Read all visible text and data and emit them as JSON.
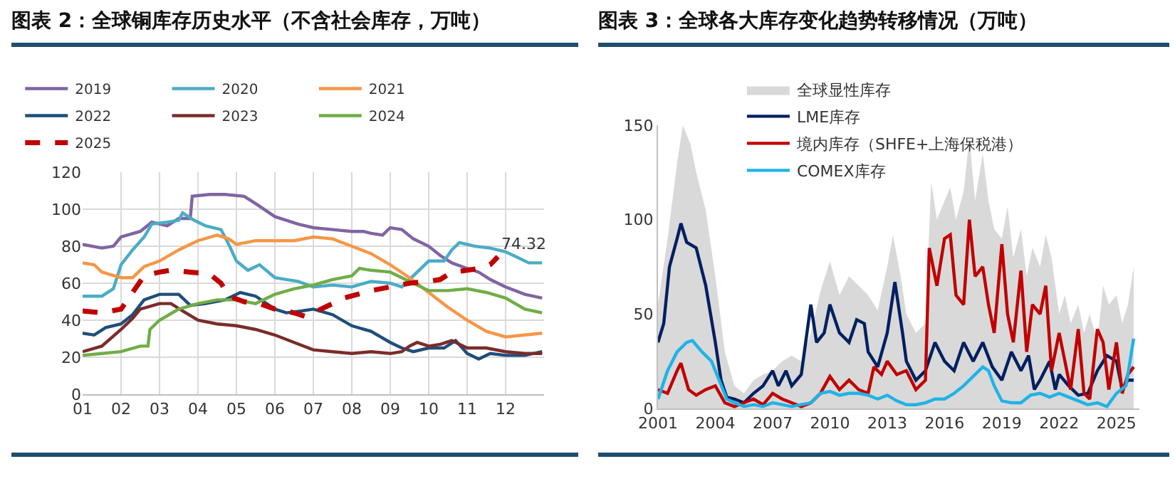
{
  "chart_data": [
    {
      "type": "line",
      "title": "图表 2：全球铜库存历史水平（不含社会库存，万吨）",
      "grid": true,
      "legend": "top",
      "xlim": [
        1,
        13
      ],
      "xticks": [
        {
          "value": 1,
          "label": "01"
        },
        {
          "value": 2,
          "label": "02"
        },
        {
          "value": 3,
          "label": "03"
        },
        {
          "value": 4,
          "label": "04"
        },
        {
          "value": 5,
          "label": "05"
        },
        {
          "value": 6,
          "label": "06"
        },
        {
          "value": 7,
          "label": "07"
        },
        {
          "value": 8,
          "label": "08"
        },
        {
          "value": 9,
          "label": "09"
        },
        {
          "value": 10,
          "label": "10"
        },
        {
          "value": 11,
          "label": "11"
        },
        {
          "value": 12,
          "label": "12"
        }
      ],
      "ylim": [
        0,
        120
      ],
      "yticks": [
        0,
        20,
        40,
        60,
        80,
        100,
        120
      ],
      "annotations": [
        {
          "text": "74.32",
          "x": 11.8,
          "y": 74.32
        }
      ],
      "series": [
        {
          "name": "2019",
          "color": "#8064a2",
          "x": [
            1,
            1.5,
            1.8,
            2,
            2.5,
            2.8,
            3.2,
            3.5,
            3.8,
            3.85,
            4.3,
            4.7,
            5.2,
            5.5,
            6,
            6.3,
            6.6,
            7,
            7.5,
            8,
            8.3,
            8.5,
            8.8,
            9,
            9.3,
            9.6,
            10,
            10.3,
            10.6,
            11,
            11.3,
            11.6,
            12,
            12.5,
            12.95
          ],
          "values": [
            81,
            79,
            80,
            85,
            88,
            93,
            91,
            95,
            95,
            107,
            108,
            108,
            107,
            103,
            96,
            94,
            92,
            90,
            89,
            88,
            88,
            87,
            86,
            90,
            89,
            84,
            80,
            75,
            71,
            68,
            66,
            62,
            58,
            54,
            52
          ]
        },
        {
          "name": "2020",
          "color": "#4bacc6",
          "x": [
            1,
            1.5,
            1.8,
            2,
            2.3,
            2.6,
            2.8,
            3.2,
            3.5,
            3.6,
            3.9,
            4.2,
            4.6,
            4.8,
            5,
            5.3,
            5.6,
            6,
            6.3,
            6.6,
            7,
            7.5,
            8,
            8.5,
            9,
            9.3,
            9.7,
            10,
            10.4,
            10.6,
            10.8,
            11.2,
            11.6,
            12,
            12.3,
            12.6,
            12.95
          ],
          "values": [
            53,
            53,
            57,
            70,
            78,
            85,
            92,
            93,
            94,
            98,
            94,
            91,
            89,
            81,
            72,
            67,
            70,
            63,
            62,
            61,
            58,
            59,
            58,
            61,
            60,
            58,
            66,
            72,
            72,
            78,
            82,
            80,
            79,
            77,
            74,
            71,
            71
          ]
        },
        {
          "name": "2021",
          "color": "#f79646",
          "x": [
            1,
            1.3,
            1.5,
            2,
            2.3,
            2.6,
            3,
            3.5,
            4,
            4.5,
            4.8,
            5,
            5.5,
            6,
            6.5,
            7,
            7.5,
            8,
            8.5,
            9,
            9.5,
            10,
            10.5,
            11,
            11.5,
            12,
            12.5,
            12.95
          ],
          "values": [
            71,
            70,
            66,
            63,
            63,
            69,
            72,
            78,
            83,
            86,
            84,
            81,
            83,
            83,
            83,
            85,
            84,
            80,
            76,
            70,
            63,
            55,
            47,
            40,
            34,
            31,
            32,
            33
          ]
        },
        {
          "name": "2022",
          "color": "#1f4e79",
          "x": [
            1,
            1.3,
            1.6,
            2,
            2.3,
            2.6,
            3,
            3.5,
            3.8,
            4.2,
            4.7,
            5.1,
            5.5,
            6,
            6.3,
            6.7,
            7,
            7.5,
            8,
            8.5,
            9,
            9.3,
            9.6,
            10,
            10.4,
            10.7,
            11,
            11.3,
            11.6,
            12,
            12.5,
            12.95
          ],
          "values": [
            33,
            32,
            36,
            38,
            43,
            51,
            54,
            54,
            48,
            49,
            51,
            55,
            53,
            46,
            44,
            45,
            46,
            43,
            37,
            34,
            28,
            25,
            23,
            25,
            25,
            29,
            22,
            19,
            22,
            21,
            21,
            23
          ]
        },
        {
          "name": "2023",
          "color": "#7b2c2c",
          "x": [
            1,
            1.5,
            2,
            2.3,
            2.5,
            3,
            3.3,
            3.6,
            4,
            4.5,
            5,
            5.5,
            6,
            6.5,
            7,
            7.5,
            8,
            8.5,
            9,
            9.3,
            9.5,
            9.7,
            10,
            10.3,
            10.6,
            11,
            11.5,
            12,
            12.5,
            12.95
          ],
          "values": [
            23,
            26,
            35,
            41,
            46,
            49,
            49,
            45,
            40,
            38,
            37,
            35,
            32,
            28,
            24,
            23,
            22,
            23,
            22,
            23,
            26,
            28,
            26,
            27,
            29,
            25,
            25,
            23,
            22,
            22
          ]
        },
        {
          "name": "2024",
          "color": "#70ad47",
          "x": [
            1,
            1.5,
            2,
            2.5,
            2.7,
            2.75,
            3,
            3.5,
            4,
            4.5,
            5,
            5.5,
            6,
            6.5,
            7,
            7.5,
            8,
            8.2,
            8.5,
            9,
            9.5,
            10,
            10.5,
            11,
            11.5,
            12,
            12.5,
            12.95
          ],
          "values": [
            21,
            22,
            23,
            26,
            26,
            35,
            40,
            46,
            49,
            51,
            51,
            49,
            54,
            57,
            59,
            62,
            64,
            68,
            67,
            66,
            61,
            56,
            56,
            57,
            55,
            52,
            46,
            44
          ]
        },
        {
          "name": "2025",
          "color": "#c00000",
          "line_style": "dashed",
          "x": [
            1,
            1.5,
            2,
            2.3,
            2.6,
            3,
            3.3,
            3.8,
            4.3,
            4.6,
            4.8,
            5.2,
            5.6,
            6,
            6.5,
            6.8,
            7.2,
            7.8,
            8.5,
            9,
            9.5,
            10,
            10.3,
            10.6,
            11,
            11.3,
            11.6,
            11.8
          ],
          "values": [
            45,
            44,
            46,
            55,
            64,
            66,
            67,
            66,
            65,
            60,
            53,
            50,
            49,
            46,
            44,
            42,
            46,
            52,
            56,
            58,
            60,
            61,
            62,
            66,
            67,
            68,
            70,
            74.32
          ]
        }
      ]
    },
    {
      "type": "line",
      "title": "图表 3：全球各大库存变化趋势转移情况（万吨）",
      "legend": "top left",
      "xlim": [
        2001,
        2026.2
      ],
      "xticks": [
        2001,
        2004,
        2007,
        2010,
        2013,
        2016,
        2019,
        2022,
        2025
      ],
      "ylim": [
        0,
        150
      ],
      "yticks": [
        0,
        50,
        100,
        150
      ],
      "series": [
        {
          "name": "全球显性库存",
          "type": "area",
          "color": "#d9d9d9",
          "x": [
            2001,
            2001.5,
            2002,
            2002.3,
            2002.7,
            2003,
            2003.5,
            2004,
            2004.5,
            2005,
            2005.5,
            2006,
            2006.5,
            2007,
            2007.5,
            2008,
            2008.5,
            2009,
            2009.5,
            2010,
            2010.5,
            2011,
            2011.5,
            2012,
            2012.5,
            2013,
            2013.3,
            2013.7,
            2014,
            2014.5,
            2015,
            2015.3,
            2015.6,
            2016,
            2016.3,
            2016.6,
            2017,
            2017.3,
            2017.6,
            2018,
            2018.3,
            2018.6,
            2019,
            2019.3,
            2019.6,
            2020,
            2020.3,
            2020.6,
            2021,
            2021.3,
            2021.6,
            2022,
            2022.3,
            2022.6,
            2023,
            2023.3,
            2023.6,
            2024,
            2024.3,
            2024.6,
            2025,
            2025.3,
            2025.6,
            2025.9
          ],
          "values": [
            55,
            90,
            130,
            150,
            140,
            125,
            105,
            70,
            30,
            12,
            8,
            15,
            18,
            20,
            25,
            28,
            25,
            40,
            62,
            78,
            60,
            70,
            65,
            60,
            52,
            75,
            92,
            70,
            50,
            40,
            45,
            120,
            100,
            110,
            117,
            100,
            115,
            143,
            110,
            135,
            110,
            95,
            90,
            107,
            80,
            95,
            70,
            85,
            75,
            92,
            80,
            50,
            60,
            45,
            55,
            40,
            50,
            35,
            65,
            55,
            60,
            45,
            55,
            75
          ]
        },
        {
          "name": "LME库存",
          "color": "#002060",
          "x": [
            2001,
            2001.3,
            2001.6,
            2002,
            2002.2,
            2002.5,
            2003,
            2003.5,
            2004,
            2004.3,
            2004.6,
            2005,
            2005.5,
            2006,
            2006.5,
            2007,
            2007.3,
            2007.7,
            2008,
            2008.5,
            2009,
            2009.3,
            2009.7,
            2010,
            2010.5,
            2011,
            2011.4,
            2011.8,
            2012,
            2012.5,
            2013,
            2013.4,
            2013.8,
            2014,
            2014.5,
            2015,
            2015.5,
            2016,
            2016.5,
            2017,
            2017.5,
            2018,
            2018.5,
            2019,
            2019.5,
            2020,
            2020.4,
            2020.7,
            2021,
            2021.5,
            2021.8,
            2022,
            2022.5,
            2023,
            2023.5,
            2024,
            2024.5,
            2025,
            2025.3,
            2025.6,
            2025.9
          ],
          "values": [
            35,
            45,
            75,
            90,
            98,
            88,
            85,
            65,
            35,
            15,
            6,
            5,
            3,
            8,
            12,
            20,
            12,
            20,
            12,
            18,
            55,
            35,
            40,
            55,
            40,
            35,
            47,
            45,
            30,
            22,
            40,
            67,
            40,
            25,
            15,
            20,
            35,
            25,
            20,
            35,
            25,
            35,
            22,
            15,
            30,
            20,
            28,
            10,
            15,
            25,
            10,
            18,
            12,
            7,
            8,
            20,
            28,
            25,
            10,
            15,
            15
          ]
        },
        {
          "name": "境内库存（SHFE+上海保税港）",
          "color": "#c00000",
          "x": [
            2001,
            2001.5,
            2002,
            2002.2,
            2002.6,
            2003,
            2003.5,
            2004,
            2004.5,
            2005,
            2005.5,
            2006,
            2006.5,
            2007,
            2007.5,
            2008,
            2008.5,
            2009,
            2009.5,
            2010,
            2010.5,
            2011,
            2011.5,
            2012,
            2012.3,
            2012.7,
            2013,
            2013.5,
            2014,
            2014.5,
            2015,
            2015.2,
            2015.6,
            2016,
            2016.3,
            2016.6,
            2017,
            2017.3,
            2017.6,
            2018,
            2018.3,
            2018.6,
            2019,
            2019.3,
            2019.6,
            2020,
            2020.3,
            2020.6,
            2021,
            2021.3,
            2021.6,
            2022,
            2022.3,
            2022.6,
            2023,
            2023.3,
            2023.6,
            2024,
            2024.3,
            2024.6,
            2025,
            2025.3,
            2025.6,
            2025.9
          ],
          "values": [
            10,
            8,
            20,
            24,
            10,
            7,
            10,
            12,
            3,
            1,
            3,
            5,
            2,
            8,
            5,
            3,
            1,
            3,
            8,
            17,
            10,
            15,
            10,
            8,
            22,
            18,
            25,
            18,
            20,
            10,
            15,
            85,
            65,
            90,
            92,
            60,
            55,
            100,
            70,
            75,
            55,
            40,
            87,
            50,
            35,
            73,
            30,
            55,
            50,
            65,
            20,
            40,
            25,
            10,
            42,
            8,
            5,
            42,
            35,
            10,
            35,
            8,
            18,
            22
          ]
        },
        {
          "name": "COMEX库存",
          "color": "#1fb3e6",
          "x": [
            2001,
            2001.5,
            2002,
            2002.5,
            2002.8,
            2003.3,
            2003.8,
            2004.2,
            2004.6,
            2005,
            2005.5,
            2006,
            2006.5,
            2007,
            2007.5,
            2008,
            2008.5,
            2009,
            2009.5,
            2010,
            2010.5,
            2011,
            2011.5,
            2012,
            2012.5,
            2013,
            2013.5,
            2014,
            2014.5,
            2015,
            2015.5,
            2016,
            2016.5,
            2017,
            2017.5,
            2018,
            2018.3,
            2018.6,
            2019,
            2019.5,
            2020,
            2020.5,
            2021,
            2021.5,
            2022,
            2022.5,
            2023,
            2023.5,
            2024,
            2024.5,
            2025,
            2025.5,
            2025.9
          ],
          "values": [
            5,
            20,
            30,
            35,
            36,
            30,
            25,
            15,
            5,
            3,
            1,
            2,
            1,
            3,
            2,
            1,
            2,
            3,
            8,
            9,
            7,
            8,
            8,
            7,
            5,
            7,
            4,
            2,
            2,
            3,
            5,
            5,
            8,
            12,
            17,
            22,
            20,
            12,
            4,
            3,
            3,
            7,
            8,
            6,
            8,
            6,
            4,
            2,
            3,
            1,
            8,
            12,
            37
          ]
        }
      ]
    }
  ]
}
